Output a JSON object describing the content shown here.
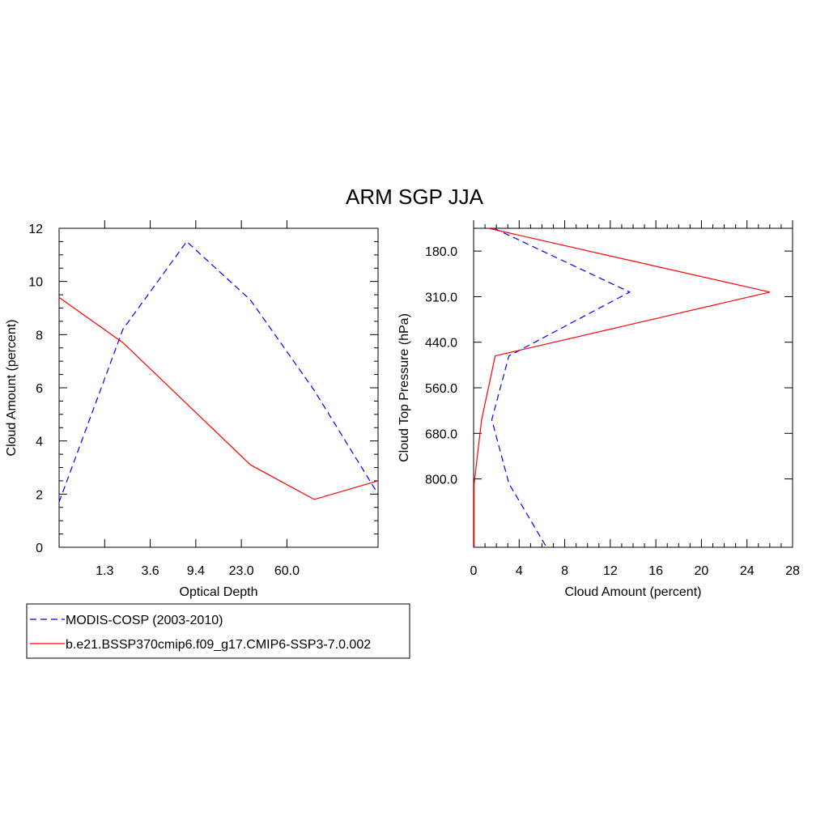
{
  "figure": {
    "title": "ARM SGP JJA"
  },
  "legend": {
    "entries": [
      {
        "label": "MODIS-COSP (2003-2010)",
        "color": "#0000ff",
        "dash": "dashed"
      },
      {
        "label": "b.e21.BSSP370cmip6.f09_g17.CMIP6-SSP3-7.0.002",
        "color": "#ff0000",
        "dash": "solid"
      }
    ]
  },
  "chart_data": [
    {
      "type": "line",
      "xlabel": "Optical Depth",
      "ylabel": "Cloud Amount (percent)",
      "x_tick_labels": [
        "1.3",
        "3.6",
        "9.4",
        "23.0",
        "60.0"
      ],
      "x_categories": 7,
      "ylim": [
        0,
        12
      ],
      "y_ticks": [
        "0",
        "2",
        "4",
        "6",
        "8",
        "10",
        "12"
      ],
      "series": [
        {
          "name": "MODIS-COSP (2003-2010)",
          "color": "#0000ff",
          "dash": "dashed",
          "values": [
            1.7,
            8.2,
            11.5,
            9.3,
            5.9,
            2.0
          ]
        },
        {
          "name": "b.e21.BSSP370cmip6.f09_g17.CMIP6-SSP3-7.0.002",
          "color": "#ff0000",
          "dash": "solid",
          "values": [
            9.4,
            7.7,
            5.4,
            3.1,
            1.8,
            2.5
          ]
        }
      ]
    },
    {
      "type": "line",
      "xlabel": "Cloud Amount (percent)",
      "ylabel": "Cloud Top Pressure (hPa)",
      "xlim": [
        0,
        28
      ],
      "x_ticks": [
        "0",
        "4",
        "8",
        "12",
        "16",
        "20",
        "24",
        "28"
      ],
      "y_tick_labels": [
        "180.0",
        "310.0",
        "440.0",
        "560.0",
        "680.0",
        "800.0"
      ],
      "series": [
        {
          "name": "MODIS-COSP (2003-2010)",
          "color": "#0000ff",
          "dash": "dashed",
          "values": [
            1.8,
            13.7,
            3.1,
            1.6,
            3.1,
            6.4
          ]
        },
        {
          "name": "b.e21.BSSP370cmip6.f09_g17.CMIP6-SSP3-7.0.002",
          "color": "#ff0000",
          "dash": "solid",
          "values": [
            1.3,
            26.0,
            1.9,
            0.7,
            0.05,
            0.05
          ]
        }
      ]
    }
  ]
}
